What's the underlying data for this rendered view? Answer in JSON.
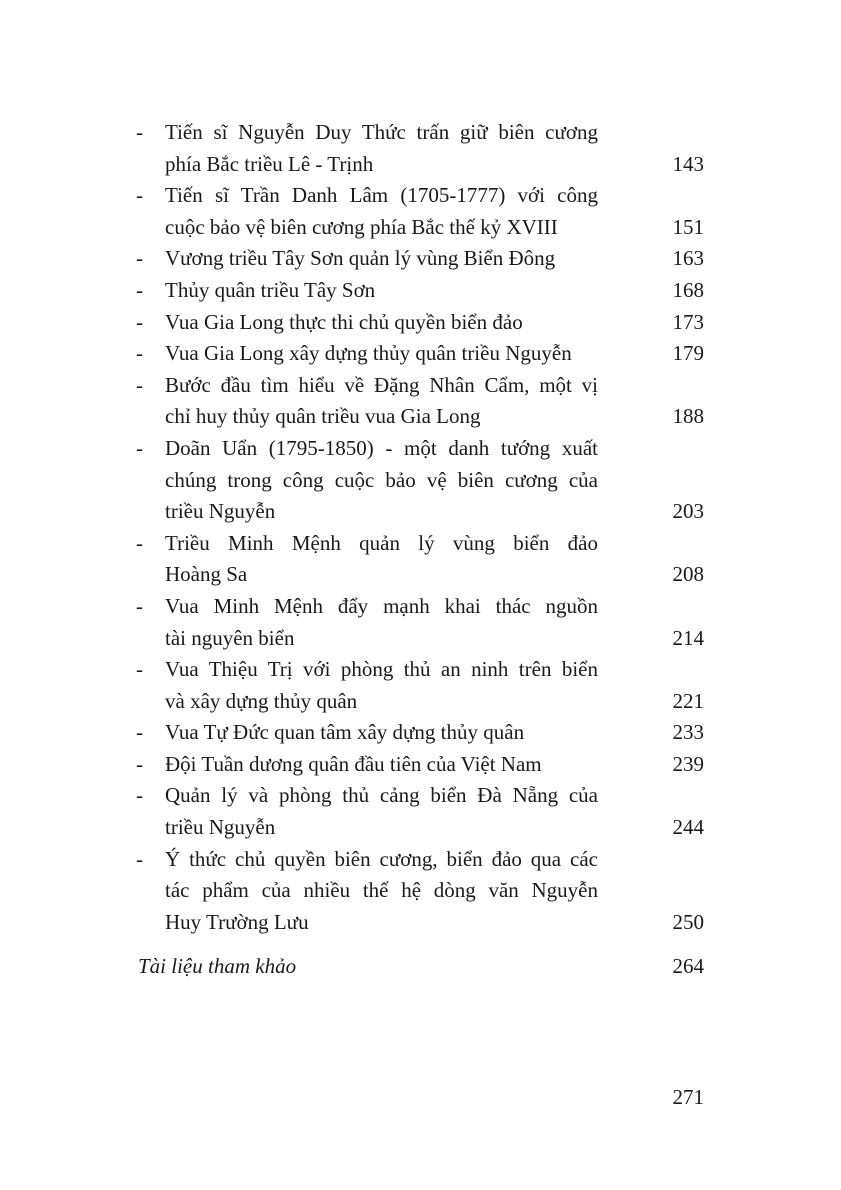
{
  "toc": {
    "entries": [
      {
        "lines": [
          "Tiến sĩ Nguyễn Duy Thức trấn giữ biên cương",
          "phía Bắc triều Lê - Trịnh"
        ],
        "page": "143"
      },
      {
        "lines": [
          "Tiến sĩ Trần Danh Lâm (1705-1777) với công",
          "cuộc bảo vệ biên cương phía Bắc thế kỷ XVIII"
        ],
        "page": "151"
      },
      {
        "lines": [
          "Vương triều Tây Sơn quản lý vùng Biển Đông"
        ],
        "page": "163"
      },
      {
        "lines": [
          "Thủy quân triều Tây Sơn"
        ],
        "page": "168"
      },
      {
        "lines": [
          "Vua Gia Long thực thi chủ quyền biển đảo"
        ],
        "page": "173"
      },
      {
        "lines": [
          "Vua Gia Long xây dựng thủy quân triều Nguyễn"
        ],
        "page": "179"
      },
      {
        "lines": [
          "Bước đầu tìm hiểu về Đặng Nhân Cẩm, một vị",
          "chỉ huy thủy quân triều vua Gia Long"
        ],
        "page": "188"
      },
      {
        "lines": [
          "Doãn Uẩn (1795-1850) - một danh tướng xuất",
          "chúng trong công cuộc bảo vệ biên cương của",
          "triều Nguyễn"
        ],
        "page": "203"
      },
      {
        "lines": [
          "Triều Minh Mệnh quản lý vùng biển đảo",
          "Hoàng Sa"
        ],
        "page": "208"
      },
      {
        "lines": [
          "Vua Minh Mệnh đẩy mạnh khai thác nguồn",
          "tài nguyên biển"
        ],
        "page": "214"
      },
      {
        "lines": [
          "Vua Thiệu Trị với phòng thủ an ninh trên biển",
          "và xây dựng thủy quân"
        ],
        "page": "221"
      },
      {
        "lines": [
          "Vua Tự Đức quan tâm xây dựng thủy quân"
        ],
        "page": "233"
      },
      {
        "lines": [
          "Đội Tuần dương quân đầu tiên của Việt Nam"
        ],
        "page": "239"
      },
      {
        "lines": [
          "Quản lý và phòng thủ cảng biển Đà Nẵng của",
          "triều Nguyễn"
        ],
        "page": "244"
      },
      {
        "lines": [
          "Ý thức chủ quyền biên cương, biển đảo qua các",
          "tác phẩm của nhiều thế hệ dòng văn Nguyễn",
          "Huy Trường Lưu"
        ],
        "page": "250"
      }
    ],
    "dash": "-",
    "references": {
      "label": "Tài liệu tham khảo",
      "page": "264"
    }
  },
  "page_number": "271"
}
